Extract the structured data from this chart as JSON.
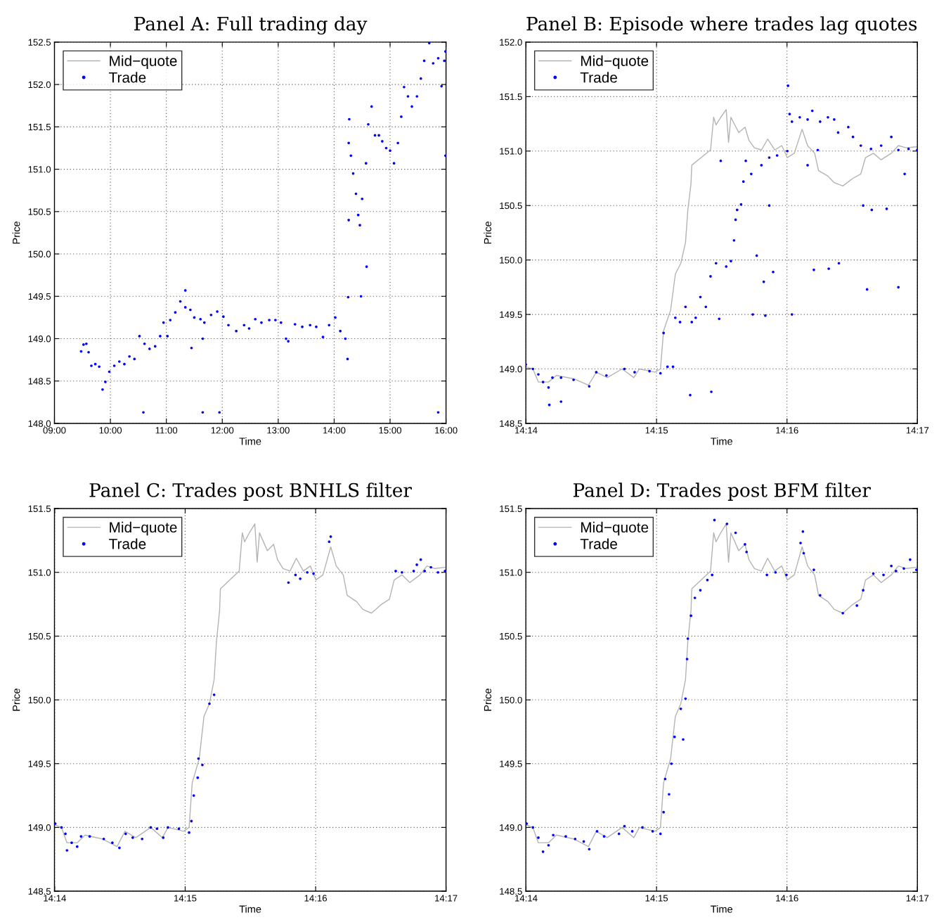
{
  "chart_data": [
    {
      "type": "scatter",
      "title": "Panel A: Full trading day",
      "xlabel": "Time",
      "ylabel": "Price",
      "grid": true,
      "legend": "top left",
      "xlim": [
        9,
        16
      ],
      "xticks": [
        {
          "value": 9,
          "label": "09:00"
        },
        {
          "value": 10,
          "label": "10:00"
        },
        {
          "value": 11,
          "label": "11:00"
        },
        {
          "value": 12,
          "label": "12:00"
        },
        {
          "value": 13,
          "label": "13:00"
        },
        {
          "value": 14,
          "label": "14:00"
        },
        {
          "value": 15,
          "label": "15:00"
        },
        {
          "value": 16,
          "label": "16:00"
        }
      ],
      "ylim": [
        148.0,
        152.5
      ],
      "yticks": [
        {
          "value": 148.0,
          "label": "148.0"
        },
        148.5,
        {
          "value": 149.0,
          "label": "149.0"
        },
        149.5,
        {
          "value": 150.0,
          "label": "150.0"
        },
        150.5,
        {
          "value": 151.0,
          "label": "151.0"
        },
        151.5,
        {
          "value": 152.0,
          "label": "152.0"
        },
        152.5
      ],
      "series": [
        {
          "name": "Mid−quote",
          "type": "line",
          "color": "#b3b3b3"
        },
        {
          "name": "Trade",
          "type": "scatter",
          "marker": "circle",
          "color": "#0000ff",
          "x": [
            9.477,
            9.52,
            9.57,
            9.61,
            9.66,
            9.73,
            9.8,
            9.86,
            9.91,
            9.98,
            10.07,
            10.16,
            10.25,
            10.34,
            10.43,
            10.52,
            10.61,
            10.7,
            10.8,
            10.89,
            10.95,
            11.02,
            11.07,
            11.16,
            11.25,
            11.34,
            11.43,
            11.5,
            11.61,
            11.68,
            11.8,
            11.91,
            12.02,
            12.11,
            12.25,
            12.39,
            12.48,
            12.59,
            12.7,
            12.84,
            12.95,
            13.05,
            13.14,
            13.18,
            13.3,
            13.43,
            13.57,
            13.68,
            13.8,
            13.91,
            14.02,
            14.11,
            14.2,
            14.24,
            14.25,
            14.26,
            14.26,
            14.27,
            14.3,
            14.34,
            14.39,
            14.43,
            14.46,
            14.5,
            14.57,
            14.61,
            14.67,
            14.73,
            14.8,
            14.86,
            14.93,
            15.0,
            15.07,
            15.14,
            15.2,
            15.25,
            15.32,
            15.39,
            15.48,
            15.55,
            15.61,
            15.7,
            15.77,
            15.86,
            15.92,
            15.97,
            15.99,
            10.59,
            11.65,
            11.95,
            15.86,
            11.34,
            14.58,
            14.48,
            15.99,
            11.45,
            11.65
          ],
          "values": [
            148.85,
            148.93,
            148.94,
            148.84,
            148.68,
            148.7,
            148.67,
            148.4,
            148.49,
            148.61,
            148.68,
            148.73,
            148.7,
            148.79,
            148.76,
            149.03,
            148.94,
            148.88,
            148.91,
            149.03,
            149.19,
            149.03,
            149.22,
            149.31,
            149.44,
            149.37,
            149.34,
            149.25,
            149.23,
            149.19,
            149.28,
            149.32,
            149.26,
            149.16,
            149.09,
            149.16,
            149.12,
            149.23,
            149.19,
            149.22,
            149.22,
            149.19,
            149.0,
            148.97,
            149.17,
            149.14,
            149.16,
            149.14,
            149.02,
            149.16,
            149.25,
            149.09,
            149.0,
            148.76,
            149.49,
            150.4,
            151.31,
            151.59,
            151.16,
            150.95,
            150.71,
            150.46,
            150.34,
            150.65,
            151.07,
            151.53,
            151.74,
            151.4,
            151.4,
            151.33,
            151.25,
            151.22,
            151.07,
            151.31,
            151.62,
            151.97,
            151.86,
            151.74,
            151.86,
            152.07,
            152.28,
            152.49,
            152.25,
            152.31,
            151.98,
            152.28,
            152.39,
            148.13,
            148.13,
            148.13,
            148.13,
            149.57,
            149.85,
            149.5,
            151.16,
            148.89,
            149.0
          ]
        }
      ]
    },
    {
      "type": "scatter",
      "title": "Panel B: Episode where trades lag quotes",
      "xlabel": "Time",
      "ylabel": "Price",
      "grid": true,
      "legend": "top left",
      "xlim": [
        14.2333,
        14.28333
      ],
      "xticks": [
        {
          "value": 14.23333,
          "label": "14:14"
        },
        {
          "value": 14.25,
          "label": "14:15"
        },
        {
          "value": 14.26667,
          "label": "14:16"
        },
        {
          "value": 14.28333,
          "label": "14:17"
        }
      ],
      "ylim": [
        148.5,
        152.0
      ],
      "yticks": [
        148.5,
        {
          "value": 149.0,
          "label": "149.0"
        },
        149.5,
        {
          "value": 150.0,
          "label": "150.0"
        },
        150.5,
        {
          "value": 151.0,
          "label": "151.0"
        },
        151.5,
        {
          "value": 152.0,
          "label": "152.0"
        }
      ],
      "series": [
        {
          "name": "Mid−quote",
          "type": "line",
          "color": "#b3b3b3",
          "x": [
            14.2333,
            14.2342,
            14.2349,
            14.2362,
            14.2372,
            14.2394,
            14.2413,
            14.2423,
            14.2437,
            14.2456,
            14.2471,
            14.2478,
            14.2498,
            14.2505,
            14.2509,
            14.2518,
            14.2524,
            14.2531,
            14.2537,
            14.254,
            14.2544,
            14.2545,
            14.2557,
            14.2569,
            14.2573,
            14.2576,
            14.2582,
            14.2589,
            14.2592,
            14.2595,
            14.2605,
            14.2613,
            14.2618,
            14.2625,
            14.2634,
            14.2642,
            14.2651,
            14.266,
            14.2667,
            14.2676,
            14.2686,
            14.2693,
            14.2702,
            14.2707,
            14.2719,
            14.2727,
            14.2738,
            14.2751,
            14.2761,
            14.2767,
            14.2777,
            14.2787,
            14.28,
            14.2809,
            14.2819,
            14.2833
          ],
          "values": [
            149.02,
            149.0,
            148.88,
            148.88,
            148.94,
            148.91,
            148.85,
            148.97,
            148.92,
            149.0,
            148.92,
            149.0,
            148.97,
            149.0,
            149.35,
            149.54,
            149.87,
            149.97,
            150.16,
            150.46,
            150.7,
            150.87,
            150.94,
            151.01,
            151.31,
            151.24,
            151.31,
            151.38,
            151.08,
            151.31,
            151.17,
            151.22,
            151.1,
            151.03,
            151.01,
            151.11,
            151.01,
            151.05,
            150.94,
            150.98,
            151.2,
            151.05,
            150.98,
            150.82,
            150.77,
            150.71,
            150.68,
            150.75,
            150.79,
            150.94,
            150.98,
            150.92,
            150.98,
            151.05,
            151.03,
            151.04
          ]
        },
        {
          "name": "Trade",
          "type": "scatter",
          "marker": "circle",
          "color": "#0000ff",
          "x": [
            14.2333,
            14.2342,
            14.2349,
            14.2355,
            14.2362,
            14.2367,
            14.2378,
            14.2394,
            14.2414,
            14.2423,
            14.2436,
            14.2459,
            14.2472,
            14.2491,
            14.2505,
            14.2509,
            14.2514,
            14.2521,
            14.2524,
            14.253,
            14.2537,
            14.2543,
            14.2545,
            14.255,
            14.2556,
            14.2563,
            14.2569,
            14.2576,
            14.2589,
            14.2595,
            14.2599,
            14.2601,
            14.2603,
            14.2608,
            14.2611,
            14.2614,
            14.2621,
            14.2634,
            14.2644,
            14.2654,
            14.2667,
            14.2668,
            14.267,
            14.2673,
            14.2683,
            14.2693,
            14.2699,
            14.2706,
            14.2709,
            14.2719,
            14.2727,
            14.2732,
            14.2745,
            14.2751,
            14.2761,
            14.2774,
            14.2787,
            14.28,
            14.2809,
            14.2822,
            14.2833,
            14.2363,
            14.2378,
            14.257,
            14.258,
            14.2623,
            14.2639,
            14.2637,
            14.2649,
            14.2628,
            14.2673,
            14.2701,
            14.2733,
            14.272,
            14.2769,
            14.2809,
            14.2764,
            14.2775,
            14.2794,
            14.2644,
            14.2582,
            14.2817,
            14.2693
          ],
          "values": [
            149.04,
            149.0,
            148.95,
            148.88,
            148.83,
            148.92,
            148.92,
            148.9,
            148.84,
            148.97,
            148.94,
            149.0,
            148.97,
            148.98,
            148.96,
            149.33,
            149.02,
            149.02,
            149.47,
            149.43,
            149.57,
            148.76,
            149.43,
            149.47,
            149.66,
            149.57,
            149.85,
            149.97,
            149.94,
            149.99,
            150.18,
            150.37,
            150.46,
            150.51,
            150.72,
            150.91,
            150.79,
            150.87,
            150.94,
            150.96,
            151.0,
            151.6,
            151.34,
            151.27,
            151.31,
            151.29,
            151.37,
            151.01,
            151.27,
            151.31,
            151.29,
            151.17,
            151.22,
            151.13,
            151.05,
            151.02,
            151.05,
            151.13,
            151.01,
            151.02,
            151.01,
            148.67,
            148.7,
            148.79,
            149.46,
            149.5,
            149.49,
            149.8,
            149.89,
            150.04,
            149.5,
            149.91,
            149.97,
            149.92,
            149.73,
            149.75,
            150.5,
            150.46,
            150.47,
            150.5,
            150.91,
            150.79,
            150.87
          ]
        }
      ]
    },
    {
      "type": "scatter",
      "title": "Panel C: Trades post BNHLS filter",
      "xlabel": "Time",
      "ylabel": "Price",
      "grid": true,
      "legend": "top left",
      "xlim": [
        14.2333,
        14.28333
      ],
      "xticks": [
        {
          "value": 14.23333,
          "label": "14:14"
        },
        {
          "value": 14.25,
          "label": "14:15"
        },
        {
          "value": 14.26667,
          "label": "14:16"
        },
        {
          "value": 14.28333,
          "label": "14:17"
        }
      ],
      "ylim": [
        148.5,
        151.5
      ],
      "yticks": [
        148.5,
        {
          "value": 149.0,
          "label": "149.0"
        },
        149.5,
        {
          "value": 150.0,
          "label": "150.0"
        },
        150.5,
        {
          "value": 151.0,
          "label": "151.0"
        },
        151.5
      ],
      "series": [
        {
          "name": "Mid−quote",
          "type": "line",
          "color": "#b3b3b3",
          "x": [
            14.2333,
            14.2342,
            14.2349,
            14.2362,
            14.2372,
            14.2394,
            14.2413,
            14.2423,
            14.2437,
            14.2456,
            14.2471,
            14.2478,
            14.2498,
            14.2505,
            14.2509,
            14.2518,
            14.2524,
            14.2531,
            14.2537,
            14.254,
            14.2544,
            14.2545,
            14.2557,
            14.2569,
            14.2573,
            14.2576,
            14.2582,
            14.2589,
            14.2592,
            14.2595,
            14.2605,
            14.2613,
            14.2618,
            14.2625,
            14.2634,
            14.2642,
            14.2651,
            14.266,
            14.2667,
            14.2676,
            14.2686,
            14.2693,
            14.2702,
            14.2707,
            14.2719,
            14.2727,
            14.2738,
            14.2751,
            14.2761,
            14.2767,
            14.2777,
            14.2787,
            14.28,
            14.2809,
            14.2819,
            14.2833
          ],
          "values": [
            149.02,
            149.0,
            148.88,
            148.88,
            148.94,
            148.91,
            148.85,
            148.97,
            148.92,
            149.0,
            148.92,
            149.0,
            148.97,
            149.0,
            149.35,
            149.54,
            149.87,
            149.97,
            150.16,
            150.46,
            150.7,
            150.87,
            150.94,
            151.01,
            151.31,
            151.24,
            151.31,
            151.38,
            151.08,
            151.31,
            151.17,
            151.22,
            151.1,
            151.03,
            151.01,
            151.11,
            151.01,
            151.05,
            150.94,
            150.98,
            151.2,
            151.05,
            150.98,
            150.82,
            150.77,
            150.71,
            150.68,
            150.75,
            150.79,
            150.94,
            150.98,
            150.92,
            150.98,
            151.05,
            151.03,
            151.04
          ]
        },
        {
          "name": "Trade",
          "type": "scatter",
          "marker": "circle",
          "color": "#0000ff",
          "x": [
            14.2334,
            14.2342,
            14.2347,
            14.2349,
            14.2355,
            14.2362,
            14.2367,
            14.2378,
            14.2396,
            14.2407,
            14.2416,
            14.2424,
            14.2433,
            14.2445,
            14.2456,
            14.2464,
            14.2472,
            14.2478,
            14.2492,
            14.2505,
            14.2508,
            14.2511,
            14.2516,
            14.2517,
            14.2522,
            14.2531,
            14.2537,
            14.2632,
            14.2641,
            14.2647,
            14.2656,
            14.2664,
            14.2684,
            14.2686,
            14.2769,
            14.2777,
            14.2792,
            14.2796,
            14.2801,
            14.2806,
            14.2814,
            14.2823,
            14.2832
          ],
          "values": [
            149.03,
            149.0,
            148.95,
            148.82,
            148.88,
            148.85,
            148.93,
            148.93,
            148.91,
            148.88,
            148.84,
            148.95,
            148.92,
            148.91,
            149.0,
            148.99,
            148.92,
            149.0,
            148.99,
            148.96,
            149.05,
            149.25,
            149.39,
            149.54,
            149.49,
            149.97,
            150.04,
            150.92,
            150.98,
            150.95,
            151.0,
            150.99,
            151.24,
            151.28,
            151.01,
            151.0,
            151.01,
            151.06,
            151.1,
            151.01,
            151.04,
            151.0,
            151.01
          ]
        }
      ]
    },
    {
      "type": "scatter",
      "title": "Panel D: Trades post BFM filter",
      "xlabel": "Time",
      "ylabel": "Price",
      "grid": true,
      "legend": "top left",
      "xlim": [
        14.2333,
        14.28333
      ],
      "xticks": [
        {
          "value": 14.23333,
          "label": "14:14"
        },
        {
          "value": 14.25,
          "label": "14:15"
        },
        {
          "value": 14.26667,
          "label": "14:16"
        },
        {
          "value": 14.28333,
          "label": "14:17"
        }
      ],
      "ylim": [
        148.5,
        151.5
      ],
      "yticks": [
        148.5,
        {
          "value": 149.0,
          "label": "149.0"
        },
        149.5,
        {
          "value": 150.0,
          "label": "150.0"
        },
        150.5,
        {
          "value": 151.0,
          "label": "151.0"
        },
        151.5
      ],
      "series": [
        {
          "name": "Mid−quote",
          "type": "line",
          "color": "#b3b3b3",
          "x": [
            14.2333,
            14.2342,
            14.2349,
            14.2362,
            14.2372,
            14.2394,
            14.2413,
            14.2423,
            14.2437,
            14.2456,
            14.2471,
            14.2478,
            14.2498,
            14.2505,
            14.2509,
            14.2518,
            14.2524,
            14.2531,
            14.2537,
            14.254,
            14.2544,
            14.2545,
            14.2557,
            14.2569,
            14.2573,
            14.2576,
            14.2582,
            14.2589,
            14.2592,
            14.2595,
            14.2605,
            14.2613,
            14.2618,
            14.2625,
            14.2634,
            14.2642,
            14.2651,
            14.266,
            14.2667,
            14.2676,
            14.2686,
            14.2693,
            14.2702,
            14.2707,
            14.2719,
            14.2727,
            14.2738,
            14.2751,
            14.2761,
            14.2767,
            14.2777,
            14.2787,
            14.28,
            14.2809,
            14.2819,
            14.2833
          ],
          "values": [
            149.02,
            149.0,
            148.88,
            148.88,
            148.94,
            148.91,
            148.85,
            148.97,
            148.92,
            149.0,
            148.92,
            149.0,
            148.97,
            149.0,
            149.35,
            149.54,
            149.87,
            149.97,
            150.16,
            150.46,
            150.7,
            150.87,
            150.94,
            151.01,
            151.31,
            151.24,
            151.31,
            151.38,
            151.08,
            151.31,
            151.17,
            151.22,
            151.1,
            151.03,
            151.01,
            151.11,
            151.01,
            151.05,
            150.94,
            150.98,
            151.2,
            151.05,
            150.98,
            150.82,
            150.77,
            150.71,
            150.68,
            150.75,
            150.79,
            150.94,
            150.98,
            150.92,
            150.98,
            151.05,
            151.03,
            151.04
          ]
        },
        {
          "name": "Trade",
          "type": "scatter",
          "marker": "circle",
          "color": "#0000ff",
          "x": [
            14.2334,
            14.2342,
            14.2349,
            14.2355,
            14.2362,
            14.2368,
            14.2384,
            14.2396,
            14.2407,
            14.2414,
            14.2424,
            14.2433,
            14.2452,
            14.2459,
            14.2469,
            14.2482,
            14.2495,
            14.2505,
            14.2509,
            14.2511,
            14.2516,
            14.2519,
            14.2523,
            14.2531,
            14.2534,
            14.2537,
            14.2539,
            14.254,
            14.2544,
            14.2549,
            14.2556,
            14.2565,
            14.2571,
            14.2574,
            14.259,
            14.2601,
            14.2613,
            14.2615,
            14.2641,
            14.2652,
            14.2666,
            14.2684,
            14.2687,
            14.2688,
            14.2701,
            14.2709,
            14.2738,
            14.2756,
            14.2764,
            14.2777,
            14.279,
            14.28,
            14.2806,
            14.2816,
            14.2824,
            14.2832
          ],
          "values": [
            149.03,
            149.0,
            148.92,
            148.81,
            148.86,
            148.94,
            148.93,
            148.91,
            148.89,
            148.83,
            148.97,
            148.93,
            148.95,
            149.01,
            148.97,
            149.0,
            148.97,
            148.95,
            149.12,
            149.38,
            149.26,
            149.5,
            149.71,
            149.93,
            149.69,
            150.01,
            150.32,
            150.48,
            150.66,
            150.8,
            150.86,
            150.94,
            150.98,
            151.41,
            151.38,
            151.31,
            151.22,
            151.16,
            150.98,
            151.0,
            150.98,
            151.23,
            151.32,
            151.15,
            151.02,
            150.82,
            150.68,
            150.74,
            150.86,
            150.99,
            150.98,
            151.05,
            151.01,
            151.03,
            151.1,
            151.02
          ]
        }
      ]
    }
  ]
}
